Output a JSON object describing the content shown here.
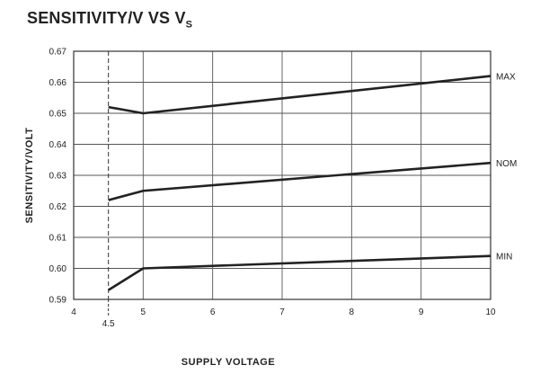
{
  "chart_data": {
    "type": "line",
    "title_main": "SENSITIVITY/V VS V",
    "title_sub": "S",
    "xlabel": "SUPPLY VOLTAGE",
    "ylabel": "SENSITIVITY/VOLT",
    "xlim": [
      4,
      10
    ],
    "ylim": [
      0.59,
      0.67
    ],
    "x_ticks": [
      4,
      5,
      6,
      7,
      8,
      9,
      10
    ],
    "x_tick_labels": [
      "4",
      "5",
      "6",
      "7",
      "8",
      "9",
      "10"
    ],
    "extra_x_tick": {
      "value": 4.5,
      "label": "4.5"
    },
    "y_ticks": [
      0.59,
      0.6,
      0.61,
      0.62,
      0.63,
      0.64,
      0.65,
      0.66,
      0.67
    ],
    "y_tick_labels": [
      "0.59",
      "0.60",
      "0.61",
      "0.62",
      "0.63",
      "0.64",
      "0.65",
      "0.66",
      "0.67"
    ],
    "grid": true,
    "series": [
      {
        "name": "MAX",
        "x": [
          4.5,
          5,
          10
        ],
        "y": [
          0.652,
          0.65,
          0.662
        ]
      },
      {
        "name": "NOM",
        "x": [
          4.5,
          5,
          10
        ],
        "y": [
          0.622,
          0.625,
          0.634
        ]
      },
      {
        "name": "MIN",
        "x": [
          4.5,
          5,
          10
        ],
        "y": [
          0.593,
          0.6,
          0.604
        ]
      }
    ],
    "line_color": "#222222"
  }
}
